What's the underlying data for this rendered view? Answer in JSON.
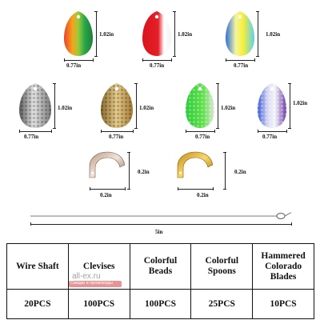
{
  "blades_row1": [
    {
      "height": "1.02in",
      "width": "0.77in"
    },
    {
      "height": "1.02in",
      "width": "0.77in"
    },
    {
      "height": "1.02in",
      "width": "0.77in"
    }
  ],
  "blades_row2": [
    {
      "height": "1.02in",
      "width": "0.77in"
    },
    {
      "height": "1.02in",
      "width": "0.77in"
    },
    {
      "height": "1.02in",
      "width": "0.77in"
    },
    {
      "height": "1.02in",
      "width": "0.77in"
    }
  ],
  "clevises": [
    {
      "height": "0.2in",
      "width": "0.2in"
    },
    {
      "height": "0.2in",
      "width": "0.2in"
    }
  ],
  "wire": {
    "length": "5in"
  },
  "table": {
    "headers": [
      "Wire Shaft",
      "Clevises",
      "Colorful Beads",
      "Colorful Spoons",
      "Hammered Colorado Blades"
    ],
    "values": [
      "20PCS",
      "100PCS",
      "100PCS",
      "25PCS",
      "10PCS"
    ]
  },
  "watermark": {
    "main": "all-ex.ru",
    "sub": "Скидки и промокоды"
  }
}
